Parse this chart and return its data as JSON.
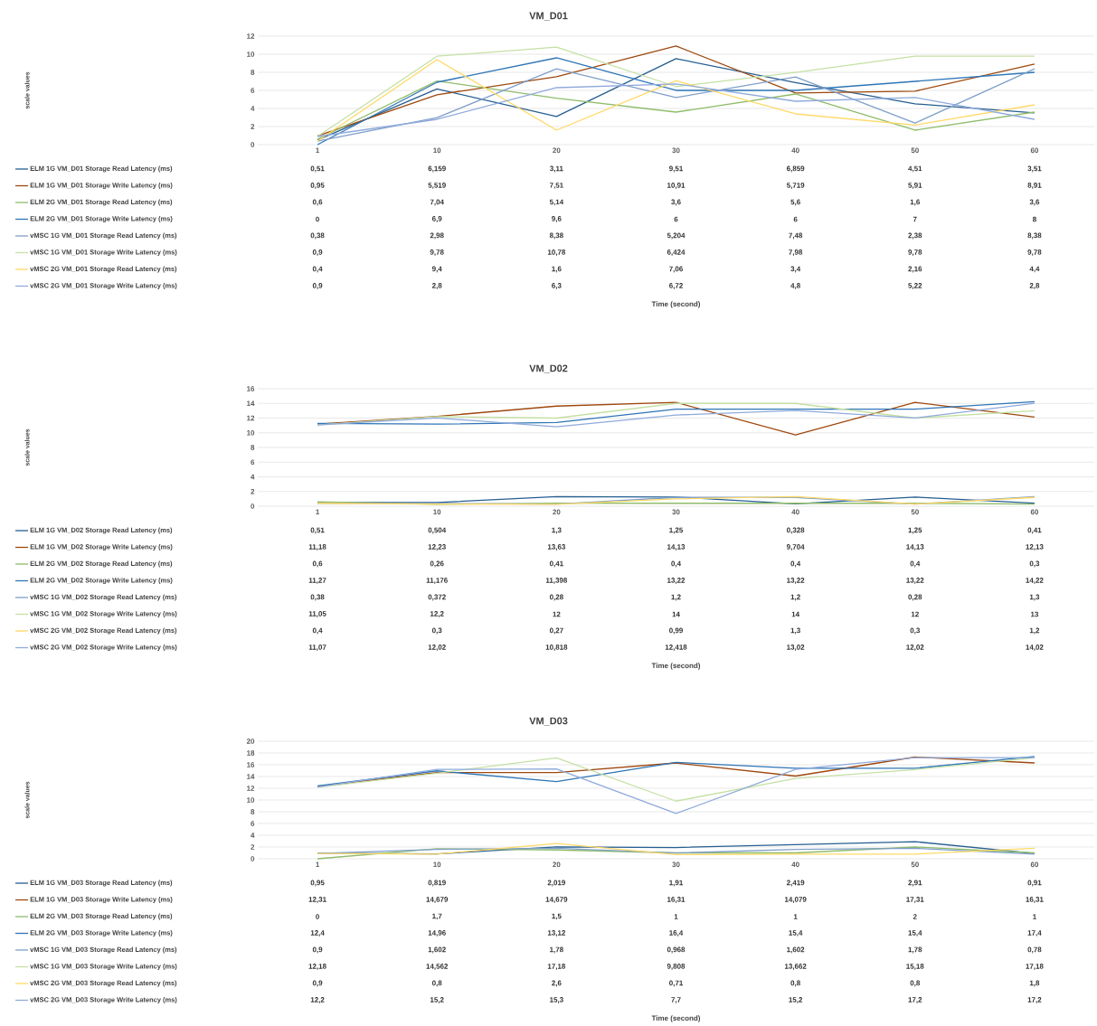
{
  "chart_data": [
    {
      "type": "line",
      "title": "VM_D01",
      "xlabel": "Time (second)",
      "ylabel": "scale values",
      "categories": [
        "1",
        "10",
        "20",
        "30",
        "40",
        "50",
        "60"
      ],
      "ylim": [
        0,
        12
      ],
      "yticks": [
        0,
        2,
        4,
        6,
        8,
        10,
        12
      ],
      "grid": "y",
      "legend": "bottom",
      "series": [
        {
          "name": "ELM 1G VM_D01 Storage Read Latency (ms)",
          "color": "#255e91",
          "values": [
            0.51,
            6.159,
            3.11,
            9.51,
            6.859,
            4.51,
            3.51
          ],
          "value_labels": [
            "0,51",
            "6,159",
            "3,11",
            "9,51",
            "6,859",
            "4,51",
            "3,51"
          ]
        },
        {
          "name": "ELM 1G VM_D01 Storage Write Latency (ms)",
          "color": "#9e480e",
          "values": [
            0.95,
            5.519,
            7.51,
            10.91,
            5.719,
            5.91,
            8.91
          ],
          "value_labels": [
            "0,95",
            "5,519",
            "7,51",
            "10,91",
            "5,719",
            "5,91",
            "8,91"
          ]
        },
        {
          "name": "ELM 2G VM_D01 Storage Read Latency (ms)",
          "color": "#8fbc6a",
          "values": [
            0.6,
            7.04,
            5.14,
            3.6,
            5.6,
            1.6,
            3.6
          ],
          "value_labels": [
            "0,6",
            "7,04",
            "5,14",
            "3,6",
            "5,6",
            "1,6",
            "3,6"
          ]
        },
        {
          "name": "ELM 2G VM_D01 Storage Write Latency (ms)",
          "color": "#2e75b6",
          "values": [
            0,
            6.9,
            9.6,
            6,
            6,
            7,
            8
          ],
          "value_labels": [
            "0",
            "6,9",
            "9,6",
            "6",
            "6",
            "7",
            "8"
          ]
        },
        {
          "name": "vMSC 1G VM_D01 Storage Read Latency (ms)",
          "color": "#7f9fc9",
          "values": [
            0.38,
            2.98,
            8.38,
            5.204,
            7.48,
            2.38,
            8.38
          ],
          "value_labels": [
            "0,38",
            "2,98",
            "8,38",
            "5,204",
            "7,48",
            "2,38",
            "8,38"
          ]
        },
        {
          "name": "vMSC 1G VM_D01 Storage Write Latency (ms)",
          "color": "#c5e0a4",
          "values": [
            0.9,
            9.78,
            10.78,
            6.424,
            7.98,
            9.78,
            9.78
          ],
          "value_labels": [
            "0,9",
            "9,78",
            "10,78",
            "6,424",
            "7,98",
            "9,78",
            "9,78"
          ]
        },
        {
          "name": "vMSC 2G VM_D01 Storage Read Latency (ms)",
          "color": "#ffd966",
          "values": [
            0.4,
            9.4,
            1.6,
            7.06,
            3.4,
            2.16,
            4.4
          ],
          "value_labels": [
            "0,4",
            "9,4",
            "1,6",
            "7,06",
            "3,4",
            "2,16",
            "4,4"
          ]
        },
        {
          "name": "vMSC 2G VM_D01 Storage Write Latency (ms)",
          "color": "#8faadc",
          "values": [
            0.9,
            2.8,
            6.3,
            6.72,
            4.8,
            5.22,
            2.8
          ],
          "value_labels": [
            "0,9",
            "2,8",
            "6,3",
            "6,72",
            "4,8",
            "5,22",
            "2,8"
          ]
        }
      ]
    },
    {
      "type": "line",
      "title": "VM_D02",
      "xlabel": "Time (second)",
      "ylabel": "scale values",
      "categories": [
        "1",
        "10",
        "20",
        "30",
        "40",
        "50",
        "60"
      ],
      "ylim": [
        0,
        16
      ],
      "yticks": [
        0,
        2,
        4,
        6,
        8,
        10,
        12,
        14,
        16
      ],
      "grid": "y",
      "legend": "bottom",
      "series": [
        {
          "name": "ELM 1G VM_D02 Storage Read Latency (ms)",
          "color": "#255e91",
          "values": [
            0.51,
            0.504,
            1.3,
            1.25,
            0.328,
            1.25,
            0.41
          ],
          "value_labels": [
            "0,51",
            "0,504",
            "1,3",
            "1,25",
            "0,328",
            "1,25",
            "0,41"
          ]
        },
        {
          "name": "ELM 1G VM_D02 Storage Write Latency (ms)",
          "color": "#9e480e",
          "values": [
            11.18,
            12.23,
            13.63,
            14.13,
            9.704,
            14.13,
            12.13
          ],
          "value_labels": [
            "11,18",
            "12,23",
            "13,63",
            "14,13",
            "9,704",
            "14,13",
            "12,13"
          ]
        },
        {
          "name": "ELM 2G VM_D02 Storage Read Latency (ms)",
          "color": "#8fbc6a",
          "values": [
            0.6,
            0.26,
            0.41,
            0.4,
            0.4,
            0.4,
            0.3
          ],
          "value_labels": [
            "0,6",
            "0,26",
            "0,41",
            "0,4",
            "0,4",
            "0,4",
            "0,3"
          ]
        },
        {
          "name": "ELM 2G VM_D02 Storage Write Latency (ms)",
          "color": "#2e75b6",
          "values": [
            11.27,
            11.176,
            11.398,
            13.22,
            13.22,
            13.22,
            14.22
          ],
          "value_labels": [
            "11,27",
            "11,176",
            "11,398",
            "13,22",
            "13,22",
            "13,22",
            "14,22"
          ]
        },
        {
          "name": "vMSC 1G VM_D02 Storage Read Latency (ms)",
          "color": "#7f9fc9",
          "values": [
            0.38,
            0.372,
            0.28,
            1.2,
            1.2,
            0.28,
            1.3
          ],
          "value_labels": [
            "0,38",
            "0,372",
            "0,28",
            "1,2",
            "1,2",
            "0,28",
            "1,3"
          ]
        },
        {
          "name": "vMSC 1G VM_D02 Storage Write Latency (ms)",
          "color": "#c5e0a4",
          "values": [
            11.05,
            12.2,
            12,
            14,
            14,
            12,
            13
          ],
          "value_labels": [
            "11,05",
            "12,2",
            "12",
            "14",
            "14",
            "12",
            "13"
          ]
        },
        {
          "name": "vMSC 2G VM_D02 Storage Read Latency (ms)",
          "color": "#ffd966",
          "values": [
            0.4,
            0.3,
            0.27,
            0.99,
            1.3,
            0.3,
            1.2
          ],
          "value_labels": [
            "0,4",
            "0,3",
            "0,27",
            "0,99",
            "1,3",
            "0,3",
            "1,2"
          ]
        },
        {
          "name": "vMSC 2G VM_D02 Storage Write Latency (ms)",
          "color": "#8faadc",
          "values": [
            11.07,
            12.02,
            10.818,
            12.418,
            13.02,
            12.02,
            14.02
          ],
          "value_labels": [
            "11,07",
            "12,02",
            "10,818",
            "12,418",
            "13,02",
            "12,02",
            "14,02"
          ]
        }
      ]
    },
    {
      "type": "line",
      "title": "VM_D03",
      "xlabel": "Time (second)",
      "ylabel": "scale values",
      "categories": [
        "1",
        "10",
        "20",
        "30",
        "40",
        "50",
        "60"
      ],
      "ylim": [
        0,
        20
      ],
      "yticks": [
        0,
        2,
        4,
        6,
        8,
        10,
        12,
        14,
        16,
        18,
        20
      ],
      "grid": "y",
      "legend": "bottom",
      "series": [
        {
          "name": "ELM 1G VM_D03 Storage Read Latency (ms)",
          "color": "#255e91",
          "values": [
            0.95,
            0.819,
            2.019,
            1.91,
            2.419,
            2.91,
            0.91
          ],
          "value_labels": [
            "0,95",
            "0,819",
            "2,019",
            "1,91",
            "2,419",
            "2,91",
            "0,91"
          ]
        },
        {
          "name": "ELM 1G VM_D03 Storage Write Latency (ms)",
          "color": "#9e480e",
          "values": [
            12.31,
            14.679,
            14.679,
            16.31,
            14.079,
            17.31,
            16.31
          ],
          "value_labels": [
            "12,31",
            "14,679",
            "14,679",
            "16,31",
            "14,079",
            "17,31",
            "16,31"
          ]
        },
        {
          "name": "ELM 2G VM_D03 Storage Read Latency (ms)",
          "color": "#8fbc6a",
          "values": [
            0,
            1.7,
            1.5,
            1,
            1,
            2,
            1
          ],
          "value_labels": [
            "0",
            "1,7",
            "1,5",
            "1",
            "1",
            "2",
            "1"
          ]
        },
        {
          "name": "ELM 2G VM_D03 Storage Write Latency (ms)",
          "color": "#2e75b6",
          "values": [
            12.4,
            14.96,
            13.12,
            16.4,
            15.4,
            15.4,
            17.4
          ],
          "value_labels": [
            "12,4",
            "14,96",
            "13,12",
            "16,4",
            "15,4",
            "15,4",
            "17,4"
          ]
        },
        {
          "name": "vMSC 1G VM_D03 Storage Read Latency (ms)",
          "color": "#7f9fc9",
          "values": [
            0.9,
            1.602,
            1.78,
            0.968,
            1.602,
            1.78,
            0.78
          ],
          "value_labels": [
            "0,9",
            "1,602",
            "1,78",
            "0,968",
            "1,602",
            "1,78",
            "0,78"
          ]
        },
        {
          "name": "vMSC 1G VM_D03 Storage Write Latency (ms)",
          "color": "#c5e0a4",
          "values": [
            12.18,
            14.562,
            17.18,
            9.808,
            13.662,
            15.18,
            17.18
          ],
          "value_labels": [
            "12,18",
            "14,562",
            "17,18",
            "9,808",
            "13,662",
            "15,18",
            "17,18"
          ]
        },
        {
          "name": "vMSC 2G VM_D03 Storage Read Latency (ms)",
          "color": "#ffd966",
          "values": [
            0.9,
            0.8,
            2.6,
            0.71,
            0.8,
            0.8,
            1.8
          ],
          "value_labels": [
            "0,9",
            "0,8",
            "2,6",
            "0,71",
            "0,8",
            "0,8",
            "1,8"
          ]
        },
        {
          "name": "vMSC 2G VM_D03 Storage Write Latency (ms)",
          "color": "#8faadc",
          "values": [
            12.2,
            15.2,
            15.3,
            7.7,
            15.2,
            17.2,
            17.2
          ],
          "value_labels": [
            "12,2",
            "15,2",
            "15,3",
            "7,7",
            "15,2",
            "17,2",
            "17,2"
          ]
        }
      ]
    }
  ]
}
